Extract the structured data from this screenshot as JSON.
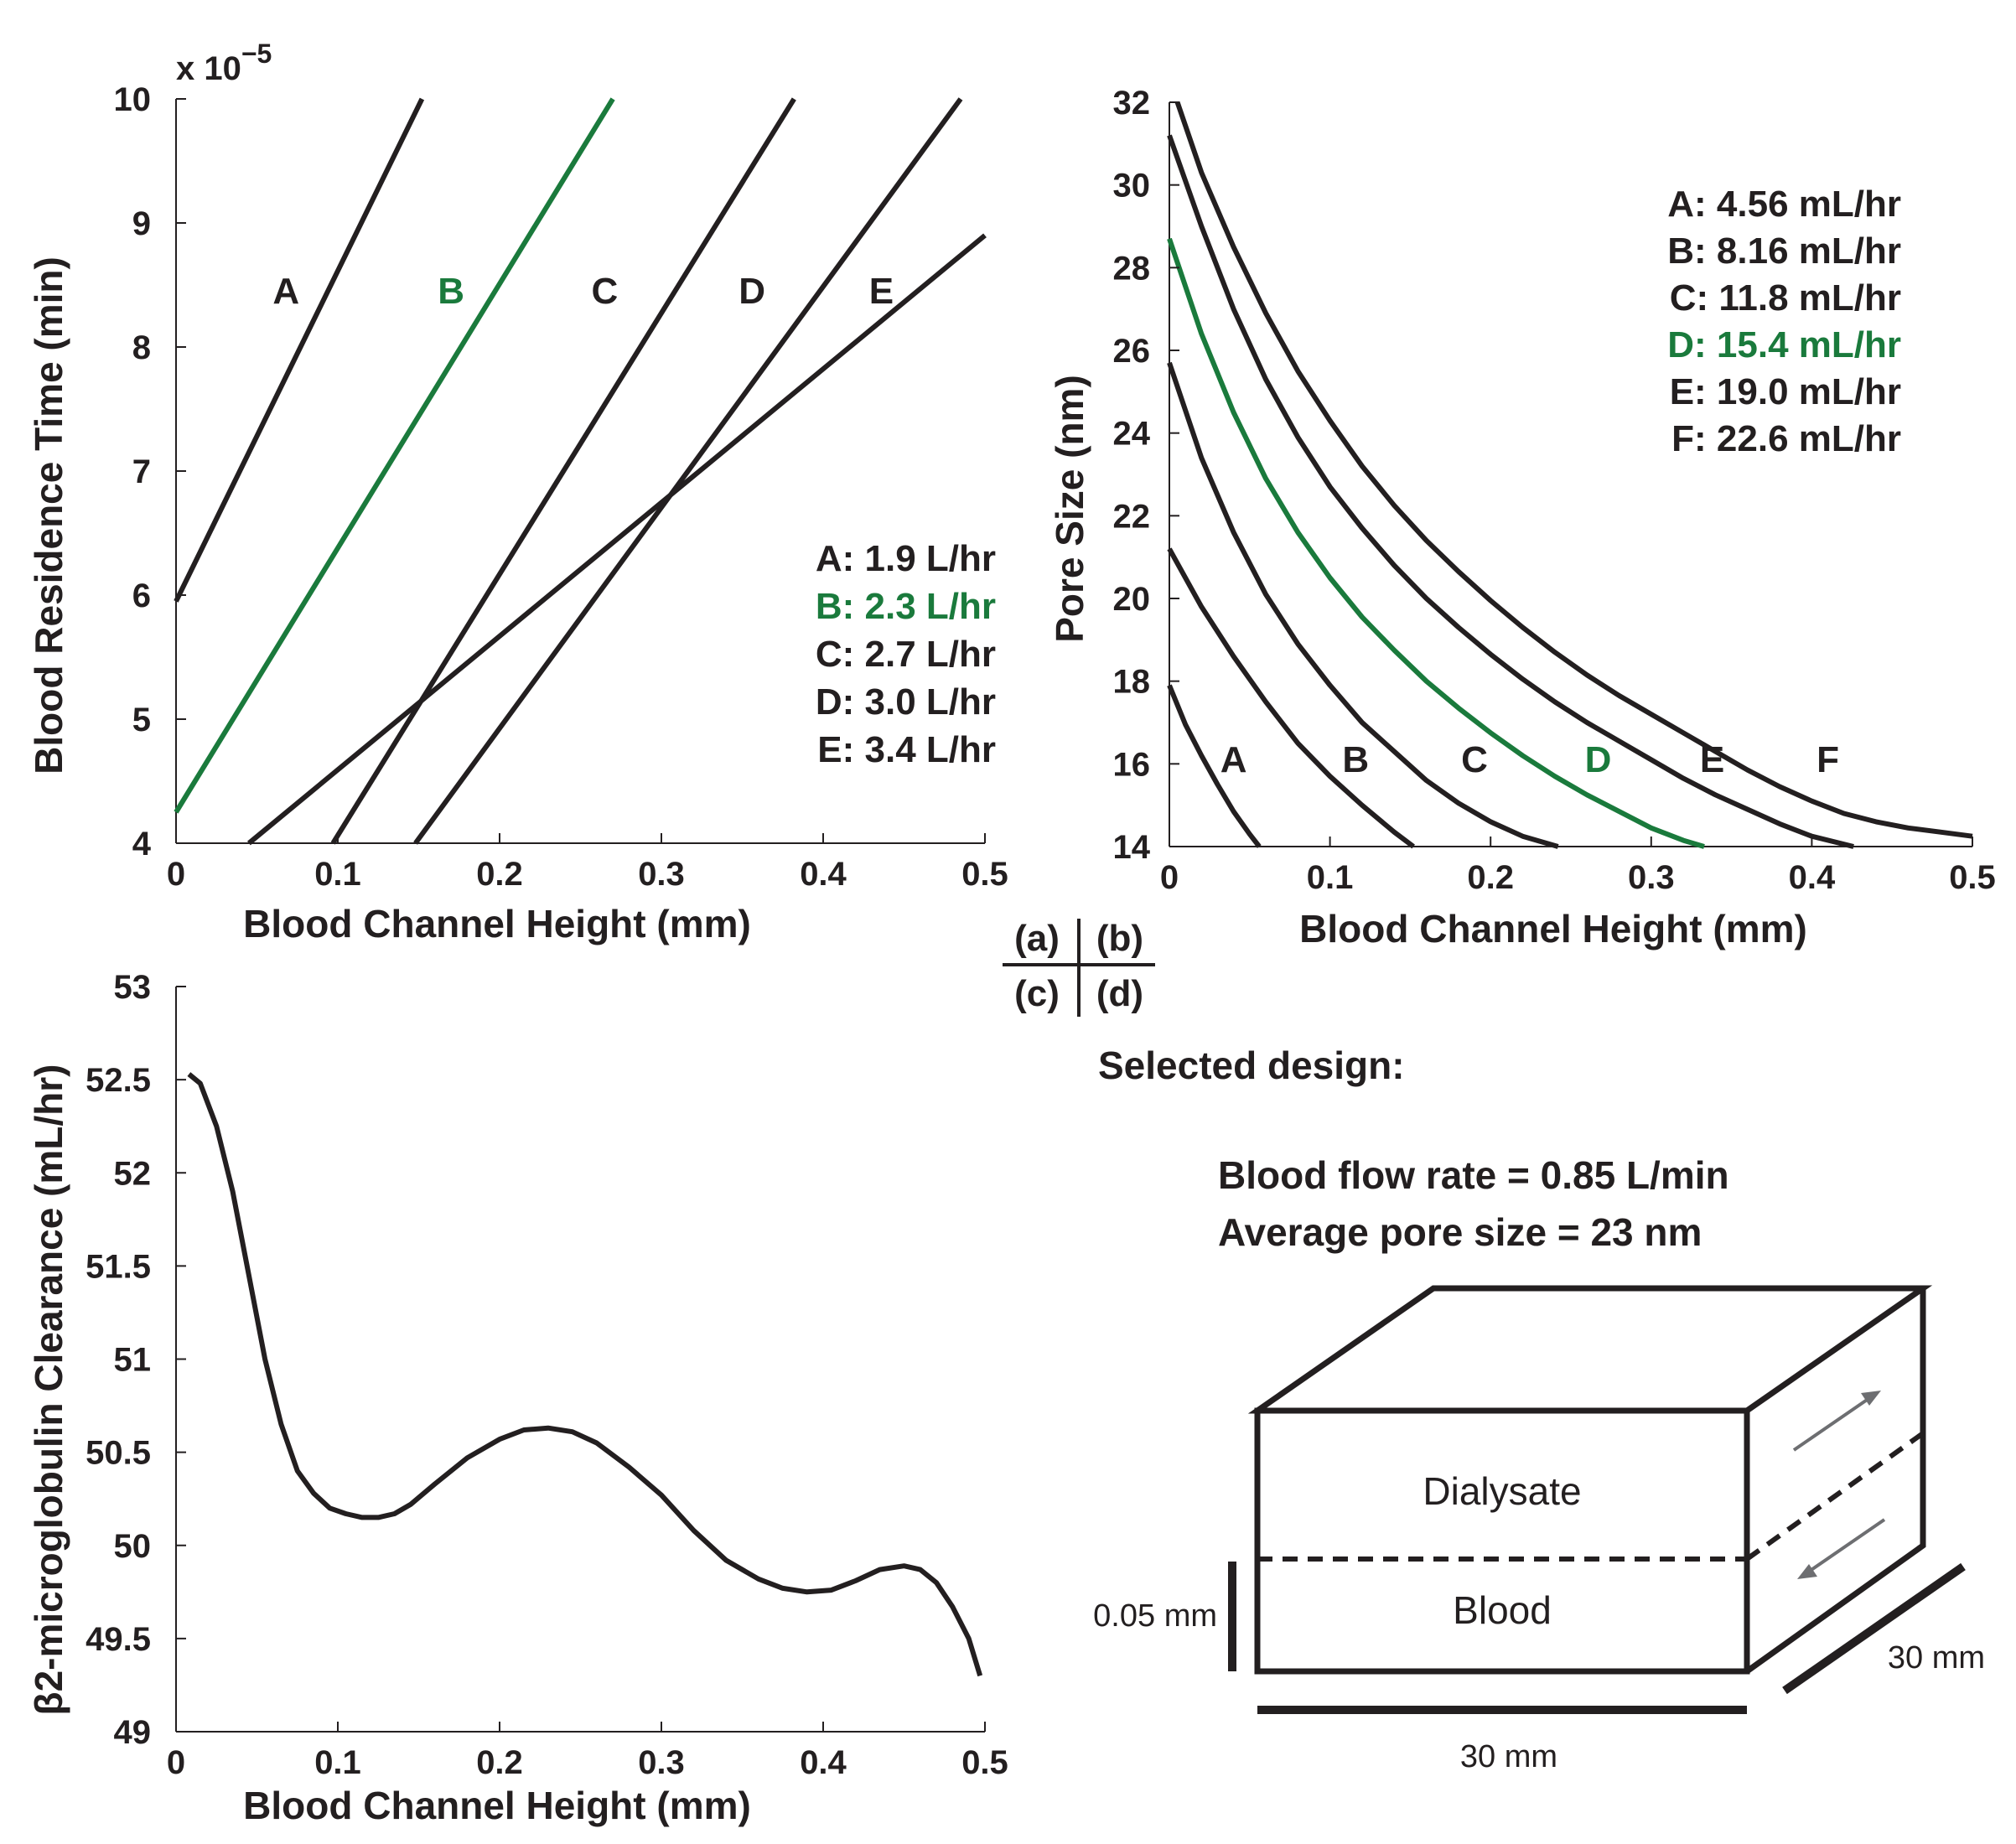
{
  "chart_data": [
    {
      "id": "a",
      "type": "line",
      "panel": "(a)",
      "xlabel": "Blood Channel Height (mm)",
      "ylabel": "Blood Residence Time (min)",
      "y_exponent": "x 10",
      "y_exponent_power": "−5",
      "xlim": [
        0,
        0.5
      ],
      "ylim": [
        4,
        10
      ],
      "xticks": [
        "0",
        "0.1",
        "0.2",
        "0.3",
        "0.4",
        "0.5"
      ],
      "yticks": [
        "4",
        "5",
        "6",
        "7",
        "8",
        "9",
        "10"
      ],
      "series": [
        {
          "label": "A",
          "legend": "A: 1.9 L/hr",
          "color": "#231f20",
          "x0": 0,
          "y0": 5.95,
          "x1": 0.152,
          "y1": 10,
          "label_x": 0.068,
          "label_y": 8.35
        },
        {
          "label": "B",
          "legend": "B: 2.3 L/hr",
          "color": "#1a7a3c",
          "x0": 0,
          "y0": 4.25,
          "x1": 0.27,
          "y1": 10,
          "label_x": 0.17,
          "label_y": 8.35
        },
        {
          "label": "C",
          "legend": "C: 2.7 L/hr",
          "color": "#231f20",
          "x0": 0.097,
          "y0": 4,
          "x1": 0.382,
          "y1": 10,
          "label_x": 0.265,
          "label_y": 8.35
        },
        {
          "label": "D",
          "legend": "D: 3.0 L/hr",
          "color": "#231f20",
          "x0": 0.148,
          "y0": 4,
          "x1": 0.485,
          "y1": 10,
          "label_x": 0.356,
          "label_y": 8.35
        },
        {
          "label": "E",
          "legend": "E: 3.4 L/hr",
          "color": "#231f20",
          "x0": 0.045,
          "y0": 4,
          "x1": 0.5,
          "y1": 8.9,
          "label_x": 0.436,
          "label_y": 8.35
        }
      ]
    },
    {
      "id": "b",
      "type": "line",
      "panel": "(b)",
      "xlabel": "Blood Channel Height (mm)",
      "ylabel": "Pore Size (nm)",
      "xlim": [
        0,
        0.5
      ],
      "ylim": [
        14,
        32
      ],
      "xticks": [
        "0",
        "0.1",
        "0.2",
        "0.3",
        "0.4",
        "0.5"
      ],
      "yticks": [
        "14",
        "16",
        "18",
        "20",
        "22",
        "24",
        "26",
        "28",
        "30",
        "32"
      ],
      "series": [
        {
          "label": "A",
          "legend": "A: 4.56 mL/hr",
          "color": "#231f20",
          "points": [
            [
              0,
              17.9
            ],
            [
              0.01,
              16.95
            ],
            [
              0.02,
              16.2
            ],
            [
              0.03,
              15.5
            ],
            [
              0.04,
              14.85
            ],
            [
              0.05,
              14.3
            ],
            [
              0.056,
              14
            ]
          ],
          "label_x": 0.04,
          "label_y": 15.8
        },
        {
          "label": "B",
          "legend": "B: 8.16 mL/hr",
          "color": "#231f20",
          "points": [
            [
              0,
              21.2
            ],
            [
              0.02,
              19.8
            ],
            [
              0.04,
              18.6
            ],
            [
              0.06,
              17.5
            ],
            [
              0.08,
              16.5
            ],
            [
              0.1,
              15.7
            ],
            [
              0.12,
              15
            ],
            [
              0.14,
              14.35
            ],
            [
              0.152,
              14
            ]
          ],
          "label_x": 0.116,
          "label_y": 15.8
        },
        {
          "label": "C",
          "legend": "C: 11.8 mL/hr",
          "color": "#231f20",
          "points": [
            [
              0,
              25.7
            ],
            [
              0.02,
              23.4
            ],
            [
              0.04,
              21.6
            ],
            [
              0.06,
              20.1
            ],
            [
              0.08,
              18.9
            ],
            [
              0.1,
              17.9
            ],
            [
              0.12,
              17
            ],
            [
              0.14,
              16.3
            ],
            [
              0.16,
              15.6
            ],
            [
              0.18,
              15.05
            ],
            [
              0.2,
              14.6
            ],
            [
              0.22,
              14.25
            ],
            [
              0.242,
              14
            ]
          ],
          "label_x": 0.19,
          "label_y": 15.8
        },
        {
          "label": "D",
          "legend": "D: 15.4 mL/hr",
          "color": "#1a7a3c",
          "points": [
            [
              0,
              28.7
            ],
            [
              0.02,
              26.4
            ],
            [
              0.04,
              24.5
            ],
            [
              0.06,
              22.9
            ],
            [
              0.08,
              21.6
            ],
            [
              0.1,
              20.5
            ],
            [
              0.12,
              19.55
            ],
            [
              0.14,
              18.75
            ],
            [
              0.16,
              18
            ],
            [
              0.18,
              17.35
            ],
            [
              0.2,
              16.75
            ],
            [
              0.22,
              16.2
            ],
            [
              0.24,
              15.7
            ],
            [
              0.26,
              15.25
            ],
            [
              0.28,
              14.85
            ],
            [
              0.3,
              14.45
            ],
            [
              0.32,
              14.15
            ],
            [
              0.333,
              14
            ]
          ],
          "label_x": 0.267,
          "label_y": 15.8
        },
        {
          "label": "E",
          "legend": "E: 19.0 mL/hr",
          "color": "#231f20",
          "points": [
            [
              0,
              31.2
            ],
            [
              0.02,
              29
            ],
            [
              0.04,
              27
            ],
            [
              0.06,
              25.3
            ],
            [
              0.08,
              23.9
            ],
            [
              0.1,
              22.7
            ],
            [
              0.12,
              21.7
            ],
            [
              0.14,
              20.8
            ],
            [
              0.16,
              20
            ],
            [
              0.18,
              19.3
            ],
            [
              0.2,
              18.65
            ],
            [
              0.22,
              18.05
            ],
            [
              0.24,
              17.5
            ],
            [
              0.26,
              17
            ],
            [
              0.28,
              16.55
            ],
            [
              0.3,
              16.1
            ],
            [
              0.32,
              15.65
            ],
            [
              0.34,
              15.25
            ],
            [
              0.36,
              14.9
            ],
            [
              0.38,
              14.55
            ],
            [
              0.4,
              14.25
            ],
            [
              0.426,
              14
            ]
          ],
          "label_x": 0.338,
          "label_y": 15.8
        },
        {
          "label": "F",
          "legend": "F: 22.6 mL/hr",
          "color": "#231f20",
          "points": [
            [
              0.005,
              32
            ],
            [
              0.02,
              30.3
            ],
            [
              0.04,
              28.5
            ],
            [
              0.06,
              26.9
            ],
            [
              0.08,
              25.5
            ],
            [
              0.1,
              24.3
            ],
            [
              0.12,
              23.2
            ],
            [
              0.14,
              22.25
            ],
            [
              0.16,
              21.4
            ],
            [
              0.18,
              20.65
            ],
            [
              0.2,
              19.95
            ],
            [
              0.22,
              19.3
            ],
            [
              0.24,
              18.7
            ],
            [
              0.26,
              18.15
            ],
            [
              0.28,
              17.65
            ],
            [
              0.3,
              17.2
            ],
            [
              0.32,
              16.75
            ],
            [
              0.34,
              16.3
            ],
            [
              0.36,
              15.85
            ],
            [
              0.38,
              15.45
            ],
            [
              0.4,
              15.1
            ],
            [
              0.42,
              14.8
            ],
            [
              0.44,
              14.6
            ],
            [
              0.46,
              14.45
            ],
            [
              0.48,
              14.35
            ],
            [
              0.5,
              14.25
            ]
          ],
          "label_x": 0.41,
          "label_y": 15.8
        }
      ]
    },
    {
      "id": "c",
      "type": "line",
      "panel": "(c)",
      "xlabel": "Blood Channel Height (mm)",
      "ylabel": "β2-microglobulin Clearance (mL/hr)",
      "xlim": [
        0,
        0.5
      ],
      "ylim": [
        49,
        53
      ],
      "xticks": [
        "0",
        "0.1",
        "0.2",
        "0.3",
        "0.4",
        "0.5"
      ],
      "yticks": [
        "49",
        "49.5",
        "50",
        "50.5",
        "51",
        "51.5",
        "52",
        "52.5",
        "53"
      ],
      "series": [
        {
          "label": "",
          "color": "#231f20",
          "points": [
            [
              0.008,
              52.53
            ],
            [
              0.015,
              52.48
            ],
            [
              0.025,
              52.25
            ],
            [
              0.035,
              51.9
            ],
            [
              0.045,
              51.45
            ],
            [
              0.055,
              51.0
            ],
            [
              0.065,
              50.65
            ],
            [
              0.075,
              50.4
            ],
            [
              0.085,
              50.28
            ],
            [
              0.095,
              50.2
            ],
            [
              0.105,
              50.17
            ],
            [
              0.115,
              50.15
            ],
            [
              0.125,
              50.15
            ],
            [
              0.135,
              50.17
            ],
            [
              0.145,
              50.22
            ],
            [
              0.16,
              50.33
            ],
            [
              0.18,
              50.47
            ],
            [
              0.2,
              50.57
            ],
            [
              0.215,
              50.62
            ],
            [
              0.23,
              50.63
            ],
            [
              0.245,
              50.61
            ],
            [
              0.26,
              50.55
            ],
            [
              0.28,
              50.42
            ],
            [
              0.3,
              50.27
            ],
            [
              0.32,
              50.08
            ],
            [
              0.34,
              49.92
            ],
            [
              0.36,
              49.82
            ],
            [
              0.375,
              49.77
            ],
            [
              0.39,
              49.75
            ],
            [
              0.405,
              49.76
            ],
            [
              0.42,
              49.81
            ],
            [
              0.435,
              49.87
            ],
            [
              0.45,
              49.89
            ],
            [
              0.46,
              49.87
            ],
            [
              0.47,
              49.8
            ],
            [
              0.48,
              49.67
            ],
            [
              0.49,
              49.5
            ],
            [
              0.497,
              49.3
            ]
          ]
        }
      ]
    }
  ],
  "panel_key": {
    "a": "(a)",
    "b": "(b)",
    "c": "(c)",
    "d": "(d)"
  },
  "design": {
    "heading": "Selected design:",
    "flow_rate": "Blood flow rate = 0.85 L/min",
    "pore_size": "Average pore size = 23 nm",
    "dialysate_label": "Dialysate",
    "blood_label": "Blood",
    "height_dim": "0.05 mm",
    "width_dim": "30 mm",
    "depth_dim": "30 mm"
  },
  "colors": {
    "ink": "#231f20",
    "green": "#1a7a3c",
    "arrow": "#6d6e71"
  }
}
